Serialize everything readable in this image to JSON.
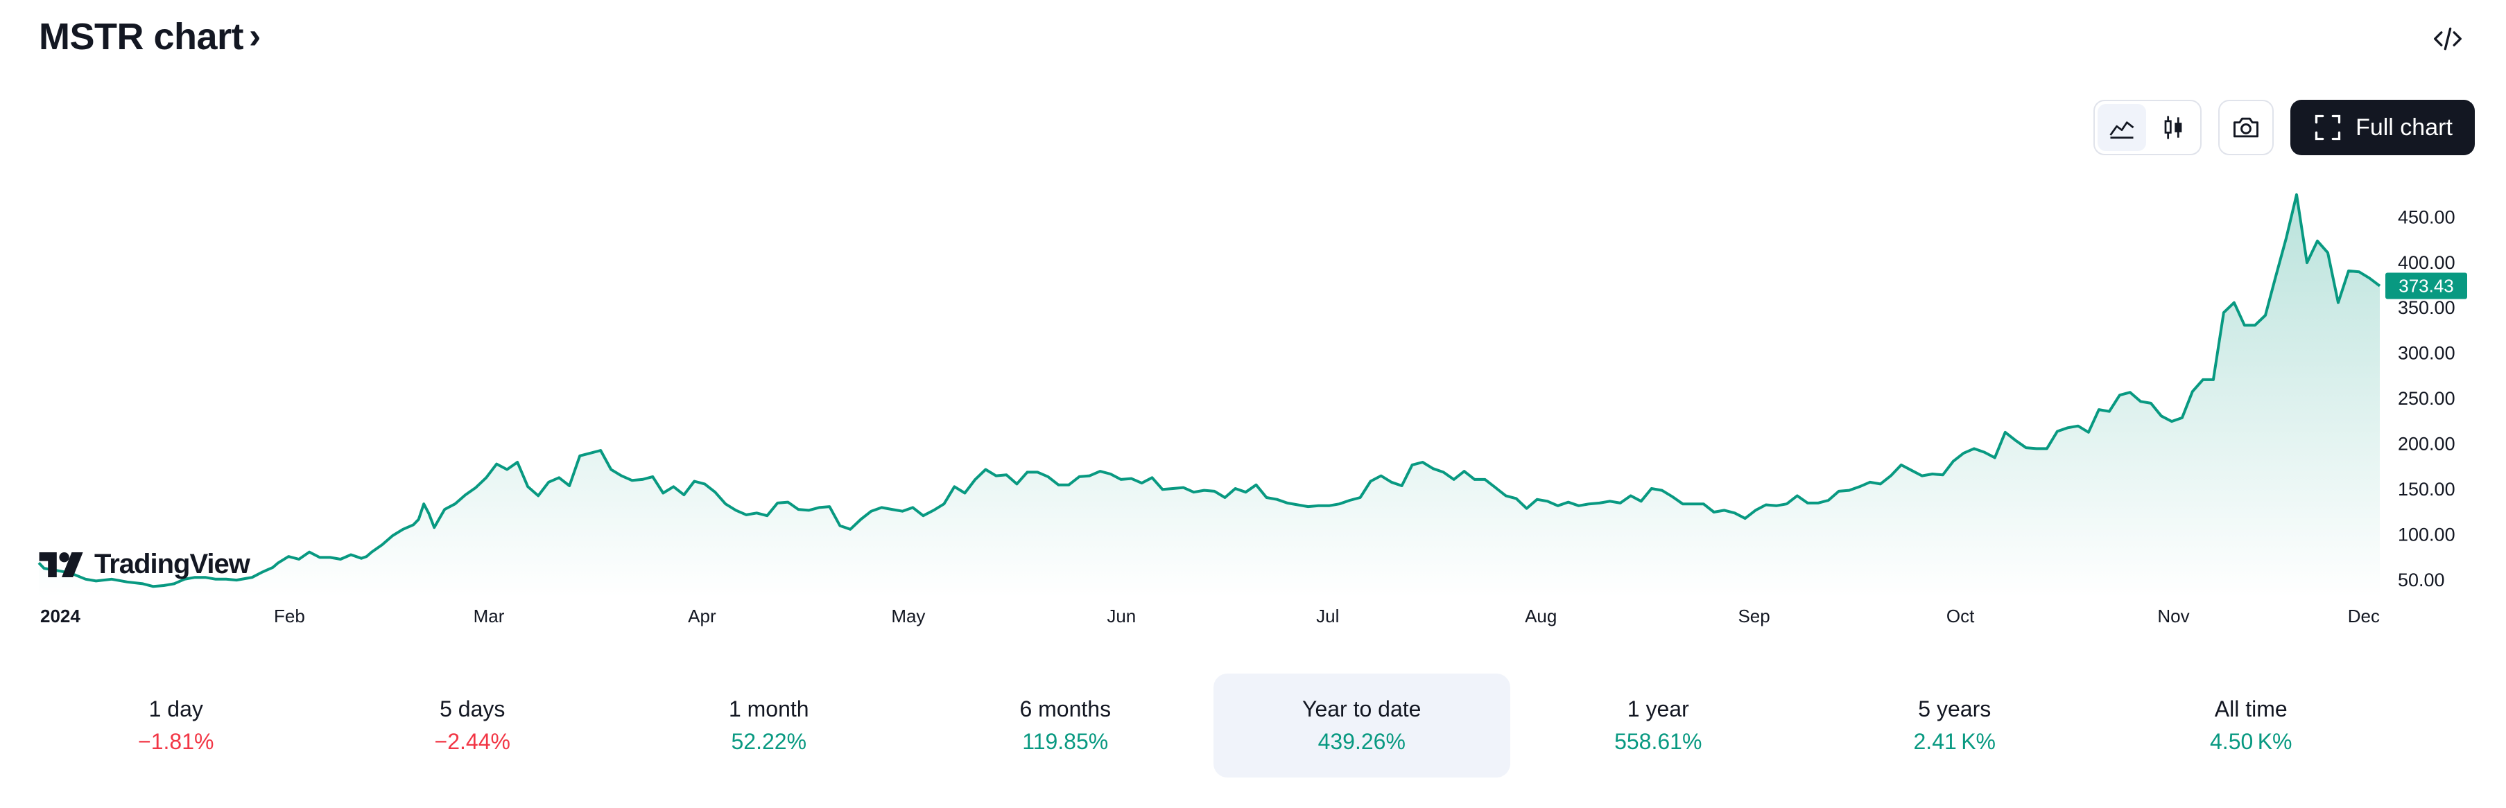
{
  "header": {
    "title": "MSTR chart",
    "chevron": "›",
    "embed_icon": "code-brackets-icon"
  },
  "toolbar": {
    "area_icon": "area-chart-icon",
    "candle_icon": "candlestick-icon",
    "snapshot_icon": "camera-icon",
    "full_chart_icon": "fullscreen-icon",
    "full_chart_label": "Full chart"
  },
  "branding": {
    "logo_text": "TradingView"
  },
  "colors": {
    "line": "#089981",
    "fill_top": "#089981",
    "price_badge": "#089981",
    "negative": "#f23645",
    "positive": "#089981",
    "dark_button": "#131722"
  },
  "chart_data": {
    "type": "area",
    "symbol": "MSTR",
    "ylim": [
      30,
      490
    ],
    "y_ticks": [
      50,
      100,
      150,
      200,
      250,
      300,
      350,
      400,
      450
    ],
    "y_tick_labels": [
      "50.00",
      "100.00",
      "150.00",
      "200.00",
      "250.00",
      "300.00",
      "350.00",
      "400.00",
      "450.00"
    ],
    "x_tick_labels": [
      "2024",
      "Feb",
      "Mar",
      "Apr",
      "May",
      "Jun",
      "Jul",
      "Aug",
      "Sep",
      "Oct",
      "Nov",
      "Dec"
    ],
    "x_tick_days": [
      0,
      31,
      60,
      91,
      121,
      152,
      182,
      213,
      244,
      274,
      305,
      335
    ],
    "x_range_days": [
      0,
      335
    ],
    "last_price": 373.43,
    "last_price_label": "373.43",
    "grid": false,
    "points": [
      [
        0,
        68
      ],
      [
        1,
        62
      ],
      [
        3,
        60
      ],
      [
        6,
        57
      ],
      [
        9,
        50
      ],
      [
        11,
        48
      ],
      [
        14,
        50
      ],
      [
        17,
        47
      ],
      [
        20,
        45
      ],
      [
        22,
        42
      ],
      [
        24,
        43
      ],
      [
        26,
        45
      ],
      [
        28,
        50
      ],
      [
        30,
        52
      ],
      [
        32,
        52
      ],
      [
        34,
        50
      ],
      [
        36,
        50
      ],
      [
        38,
        49
      ],
      [
        40,
        51
      ],
      [
        41,
        52
      ],
      [
        43,
        58
      ],
      [
        45,
        63
      ],
      [
        46,
        68
      ],
      [
        48,
        75
      ],
      [
        50,
        72
      ],
      [
        52,
        80
      ],
      [
        54,
        74
      ],
      [
        56,
        74
      ],
      [
        58,
        72
      ],
      [
        60,
        77
      ],
      [
        62,
        73
      ],
      [
        63,
        75
      ],
      [
        64,
        80
      ],
      [
        66,
        88
      ],
      [
        68,
        98
      ],
      [
        70,
        105
      ],
      [
        72,
        110
      ],
      [
        73,
        116
      ],
      [
        74,
        133
      ],
      [
        75,
        122
      ],
      [
        76,
        107
      ],
      [
        78,
        127
      ],
      [
        80,
        133
      ],
      [
        82,
        143
      ],
      [
        84,
        151
      ],
      [
        86,
        162
      ],
      [
        88,
        177
      ],
      [
        90,
        171
      ],
      [
        92,
        179
      ],
      [
        94,
        152
      ],
      [
        96,
        142
      ],
      [
        98,
        157
      ],
      [
        100,
        162
      ],
      [
        102,
        153
      ],
      [
        104,
        186
      ],
      [
        106,
        189
      ],
      [
        108,
        192
      ],
      [
        110,
        171
      ],
      [
        112,
        164
      ],
      [
        114,
        159
      ],
      [
        116,
        160
      ],
      [
        118,
        163
      ],
      [
        120,
        145
      ],
      [
        122,
        152
      ],
      [
        124,
        143
      ],
      [
        126,
        158
      ],
      [
        128,
        155
      ],
      [
        130,
        146
      ],
      [
        132,
        133
      ],
      [
        134,
        126
      ],
      [
        136,
        121
      ],
      [
        138,
        123
      ],
      [
        140,
        120
      ],
      [
        142,
        134
      ],
      [
        144,
        135
      ],
      [
        146,
        127
      ],
      [
        148,
        126
      ],
      [
        150,
        129
      ],
      [
        152,
        130
      ],
      [
        154,
        109
      ],
      [
        156,
        105
      ],
      [
        158,
        116
      ],
      [
        160,
        125
      ],
      [
        162,
        129
      ],
      [
        164,
        127
      ],
      [
        166,
        125
      ],
      [
        168,
        129
      ],
      [
        170,
        120
      ],
      [
        172,
        126
      ],
      [
        174,
        133
      ],
      [
        176,
        152
      ],
      [
        178,
        145
      ],
      [
        180,
        160
      ],
      [
        182,
        171
      ],
      [
        184,
        164
      ],
      [
        186,
        165
      ],
      [
        188,
        155
      ],
      [
        190,
        168
      ],
      [
        192,
        168
      ],
      [
        194,
        163
      ],
      [
        196,
        154
      ],
      [
        198,
        154
      ],
      [
        200,
        163
      ],
      [
        202,
        164
      ],
      [
        204,
        169
      ],
      [
        206,
        166
      ],
      [
        208,
        160
      ],
      [
        210,
        161
      ],
      [
        212,
        156
      ],
      [
        214,
        162
      ],
      [
        216,
        149
      ],
      [
        218,
        150
      ],
      [
        220,
        151
      ],
      [
        222,
        146
      ],
      [
        224,
        148
      ],
      [
        226,
        147
      ],
      [
        228,
        140
      ],
      [
        230,
        150
      ],
      [
        232,
        146
      ],
      [
        234,
        154
      ],
      [
        236,
        140
      ],
      [
        238,
        138
      ],
      [
        240,
        134
      ],
      [
        242,
        132
      ],
      [
        244,
        130
      ],
      [
        246,
        131
      ],
      [
        248,
        131
      ],
      [
        250,
        133
      ],
      [
        252,
        137
      ],
      [
        254,
        140
      ],
      [
        256,
        158
      ],
      [
        258,
        164
      ],
      [
        260,
        157
      ],
      [
        262,
        153
      ],
      [
        264,
        176
      ],
      [
        266,
        179
      ],
      [
        268,
        172
      ],
      [
        270,
        168
      ],
      [
        272,
        160
      ],
      [
        274,
        169
      ],
      [
        276,
        160
      ],
      [
        278,
        160
      ],
      [
        280,
        151
      ],
      [
        282,
        142
      ],
      [
        284,
        139
      ],
      [
        286,
        128
      ],
      [
        288,
        138
      ],
      [
        290,
        136
      ],
      [
        292,
        131
      ],
      [
        294,
        135
      ],
      [
        296,
        131
      ],
      [
        298,
        133
      ],
      [
        300,
        134
      ],
      [
        302,
        136
      ],
      [
        304,
        134
      ],
      [
        306,
        142
      ],
      [
        308,
        136
      ],
      [
        310,
        150
      ],
      [
        312,
        148
      ],
      [
        314,
        141
      ],
      [
        316,
        133
      ],
      [
        318,
        133
      ],
      [
        320,
        133
      ],
      [
        322,
        124
      ],
      [
        324,
        126
      ],
      [
        326,
        123
      ],
      [
        328,
        117
      ],
      [
        330,
        126
      ],
      [
        332,
        132
      ],
      [
        334,
        131
      ],
      [
        336,
        133
      ],
      [
        338,
        142
      ],
      [
        340,
        134
      ],
      [
        342,
        134
      ],
      [
        344,
        137
      ],
      [
        346,
        147
      ],
      [
        348,
        148
      ],
      [
        350,
        152
      ],
      [
        352,
        157
      ],
      [
        354,
        155
      ],
      [
        356,
        164
      ],
      [
        358,
        176
      ],
      [
        360,
        170
      ],
      [
        362,
        164
      ],
      [
        364,
        166
      ],
      [
        366,
        165
      ],
      [
        368,
        180
      ],
      [
        370,
        189
      ],
      [
        372,
        194
      ],
      [
        374,
        190
      ],
      [
        376,
        184
      ],
      [
        378,
        212
      ],
      [
        380,
        203
      ],
      [
        382,
        195
      ],
      [
        384,
        194
      ],
      [
        386,
        194
      ],
      [
        388,
        213
      ],
      [
        390,
        217
      ],
      [
        392,
        219
      ],
      [
        394,
        212
      ],
      [
        396,
        237
      ],
      [
        398,
        235
      ],
      [
        400,
        253
      ],
      [
        402,
        256
      ],
      [
        404,
        246
      ],
      [
        406,
        244
      ],
      [
        408,
        230
      ],
      [
        410,
        224
      ],
      [
        412,
        228
      ],
      [
        414,
        257
      ],
      [
        416,
        270
      ],
      [
        418,
        270
      ],
      [
        420,
        344
      ],
      [
        422,
        355
      ],
      [
        424,
        330
      ],
      [
        426,
        330
      ],
      [
        428,
        341
      ],
      [
        430,
        384
      ],
      [
        432,
        426
      ],
      [
        434,
        474
      ],
      [
        436,
        399
      ],
      [
        438,
        423
      ],
      [
        440,
        410
      ],
      [
        442,
        355
      ],
      [
        444,
        390
      ],
      [
        446,
        389
      ],
      [
        448,
        382
      ],
      [
        450,
        373.43
      ]
    ]
  },
  "periods": [
    {
      "label": "1 day",
      "value": "−1.81%",
      "sign": "neg"
    },
    {
      "label": "5 days",
      "value": "−2.44%",
      "sign": "neg"
    },
    {
      "label": "1 month",
      "value": "52.22%",
      "sign": "pos"
    },
    {
      "label": "6 months",
      "value": "119.85%",
      "sign": "pos"
    },
    {
      "label": "Year to date",
      "value": "439.26%",
      "sign": "pos",
      "selected": true
    },
    {
      "label": "1 year",
      "value": "558.61%",
      "sign": "pos"
    },
    {
      "label": "5 years",
      "value": "2.41 K%",
      "sign": "pos"
    },
    {
      "label": "All time",
      "value": "4.50 K%",
      "sign": "pos"
    }
  ]
}
